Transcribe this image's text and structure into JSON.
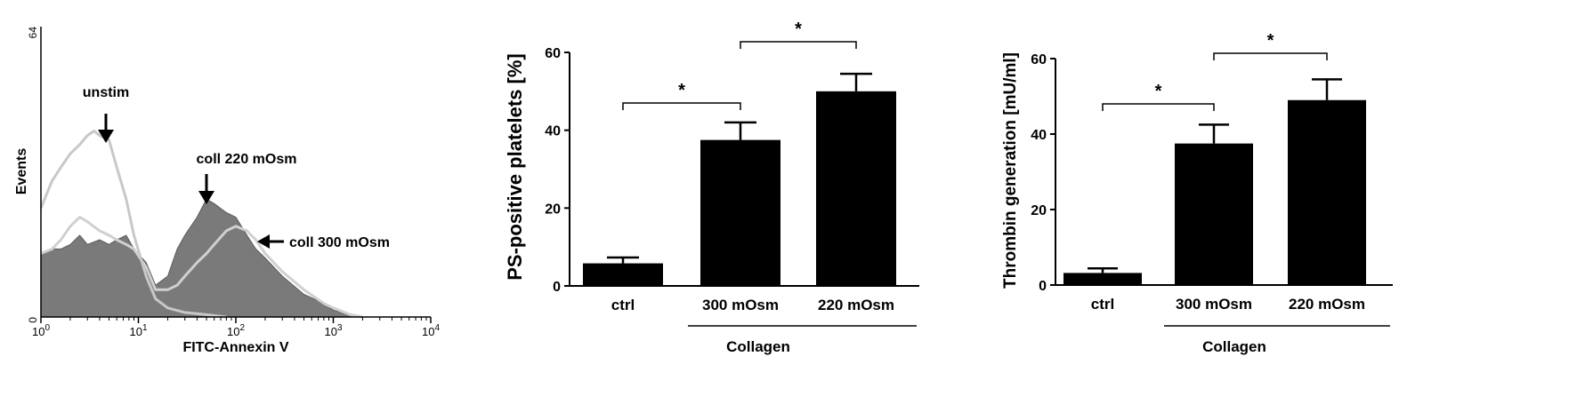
{
  "chart_data": [
    {
      "type": "area",
      "xlabel": "FITC-Annexin V",
      "ylabel": "Events",
      "x_scale": "log",
      "xlim": [
        1,
        10000
      ],
      "ylim": [
        0,
        64
      ],
      "y_ticks": [
        "0",
        "64"
      ],
      "x_ticks": [
        {
          "base": "10",
          "exp": "0"
        },
        {
          "base": "10",
          "exp": "1"
        },
        {
          "base": "10",
          "exp": "2"
        },
        {
          "base": "10",
          "exp": "3"
        },
        {
          "base": "10",
          "exp": "4"
        }
      ],
      "annotations": [
        "unstim",
        "coll 220 mOsm",
        "coll 300 mOsm"
      ],
      "series": [
        {
          "label": "coll 220 mOsm",
          "color": "#7a7a7a",
          "style": "filled",
          "x": [
            1,
            1.3,
            1.6,
            2,
            2.5,
            3,
            4,
            5,
            6,
            7.5,
            9,
            12,
            15,
            20,
            25,
            30,
            40,
            50,
            60,
            80,
            100,
            130,
            160,
            200,
            300,
            500,
            800,
            1000,
            1500,
            2000
          ],
          "y": [
            14,
            15,
            15,
            16,
            18,
            16,
            17,
            16,
            17,
            18,
            15,
            12,
            7,
            9,
            15,
            18,
            22,
            26,
            25,
            23,
            22,
            18,
            15,
            13,
            9,
            5,
            3,
            1.5,
            0.5,
            0
          ]
        },
        {
          "label": "coll 300 mOsm",
          "color": "#d0d0d0",
          "style": "line",
          "x": [
            1,
            1.3,
            1.6,
            2,
            2.5,
            3,
            4,
            5,
            6,
            7.5,
            9,
            12,
            15,
            20,
            25,
            30,
            40,
            50,
            60,
            80,
            100,
            130,
            160,
            200,
            300,
            500,
            800,
            1000,
            1500,
            2000
          ],
          "y": [
            14,
            15,
            17,
            20,
            22,
            21,
            19,
            18,
            17,
            16,
            15,
            11,
            6,
            6,
            7,
            9,
            12,
            14,
            16,
            19,
            20,
            19,
            17,
            14,
            10,
            6,
            3,
            2,
            0.5,
            0
          ]
        },
        {
          "label": "unstim",
          "color": "#c8c8c8",
          "style": "line",
          "x": [
            1,
            1.3,
            1.6,
            2,
            2.5,
            3,
            3.5,
            4,
            5,
            6,
            7.5,
            9,
            12,
            15,
            20,
            30,
            50,
            80
          ],
          "y": [
            24,
            30,
            33,
            36,
            38,
            40,
            41,
            40,
            39,
            33,
            26,
            18,
            9,
            4,
            2,
            1,
            0.5,
            0
          ]
        }
      ]
    },
    {
      "type": "bar",
      "ylabel": "PS-positive platelets [%]",
      "ylim": [
        0,
        60
      ],
      "y_ticks": [
        0,
        20,
        40,
        60
      ],
      "categories": [
        "ctrl",
        "300 mOsm",
        "220 mOsm"
      ],
      "values": [
        5.8,
        37.5,
        50
      ],
      "errors": [
        1.5,
        4.5,
        4.5
      ],
      "group_label": "Collagen",
      "significance": [
        {
          "from": 0,
          "to": 1,
          "label": "*"
        },
        {
          "from": 1,
          "to": 2,
          "label": "*"
        }
      ]
    },
    {
      "type": "bar",
      "ylabel": "Thrombin generation [mU/ml]",
      "ylim": [
        0,
        60
      ],
      "y_ticks": [
        0,
        20,
        40,
        60
      ],
      "categories": [
        "ctrl",
        "300 mOsm",
        "220 mOsm"
      ],
      "values": [
        3.2,
        37.5,
        49
      ],
      "errors": [
        1.2,
        5,
        5.5
      ],
      "group_label": "Collagen",
      "significance": [
        {
          "from": 0,
          "to": 1,
          "label": "*"
        },
        {
          "from": 1,
          "to": 2,
          "label": "*"
        }
      ]
    }
  ]
}
